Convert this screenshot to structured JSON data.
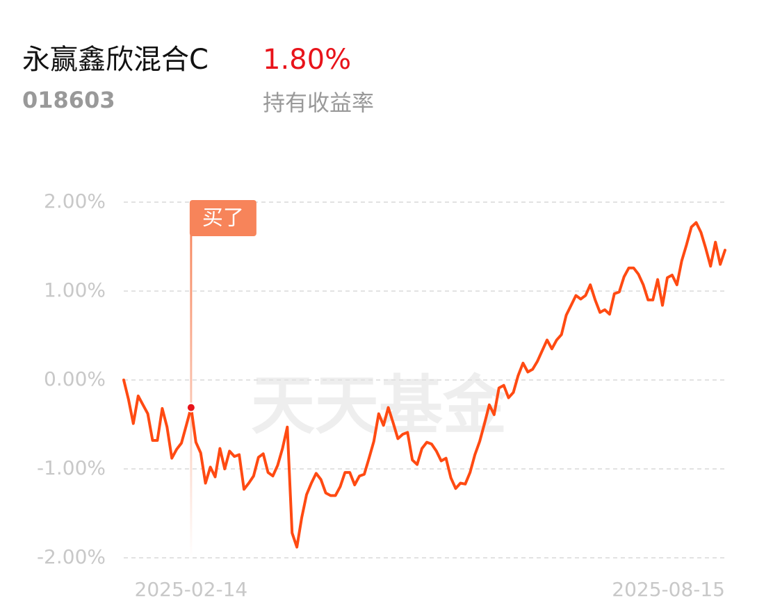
{
  "header": {
    "name": "永赢鑫欣混合C",
    "return": "1.80%",
    "code": "018603",
    "return_label": "持有收益率",
    "watermark": "天天基金"
  },
  "chart_data": {
    "type": "line",
    "color": "#ff4a12",
    "categories": [
      null,
      null,
      null,
      null,
      null,
      null,
      null,
      null,
      null,
      null,
      null,
      null,
      null,
      null,
      "2025-02-14",
      null,
      null,
      null,
      null,
      null,
      null,
      null,
      null,
      null,
      null,
      null,
      null,
      null,
      null,
      null,
      null,
      null,
      null,
      null,
      null,
      null,
      null,
      null,
      null,
      null,
      null,
      null,
      null,
      null,
      null,
      null,
      null,
      null,
      null,
      null,
      null,
      null,
      null,
      null,
      null,
      null,
      null,
      null,
      null,
      null,
      null,
      null,
      null,
      null,
      null,
      null,
      null,
      null,
      null,
      null,
      null,
      null,
      null,
      null,
      null,
      null,
      null,
      null,
      null,
      null,
      null,
      null,
      null,
      null,
      null,
      null,
      null,
      null,
      null,
      null,
      null,
      null,
      null,
      null,
      null,
      null,
      null,
      null,
      null,
      null,
      null,
      null,
      null,
      null,
      null,
      null,
      null,
      null,
      null,
      null,
      null,
      null,
      null,
      null,
      null,
      null,
      null,
      null,
      null,
      null,
      null,
      null,
      null,
      null,
      null,
      "2025-08-15"
    ],
    "values": [
      0,
      -0.22,
      -0.49,
      -0.18,
      -0.28,
      -0.38,
      -0.68,
      -0.68,
      -0.32,
      -0.53,
      -0.88,
      -0.78,
      -0.71,
      -0.51,
      -0.31,
      -0.7,
      -0.82,
      -1.16,
      -0.98,
      -1.09,
      -0.77,
      -1.0,
      -0.8,
      -0.86,
      -0.84,
      -1.23,
      -1.16,
      -1.08,
      -0.87,
      -0.83,
      -1.04,
      -1.08,
      -0.96,
      -0.77,
      -0.53,
      -1.72,
      -1.88,
      -1.55,
      -1.29,
      -1.16,
      -1.05,
      -1.12,
      -1.27,
      -1.3,
      -1.3,
      -1.2,
      -1.04,
      -1.04,
      -1.18,
      -1.08,
      -1.06,
      -0.88,
      -0.69,
      -0.38,
      -0.51,
      -0.31,
      -0.48,
      -0.66,
      -0.61,
      -0.59,
      -0.9,
      -0.95,
      -0.77,
      -0.7,
      -0.72,
      -0.8,
      -0.91,
      -0.88,
      -1.1,
      -1.22,
      -1.16,
      -1.17,
      -1.04,
      -0.84,
      -0.69,
      -0.49,
      -0.28,
      -0.39,
      -0.09,
      -0.06,
      -0.2,
      -0.14,
      0.05,
      0.19,
      0.09,
      0.12,
      0.21,
      0.33,
      0.45,
      0.35,
      0.45,
      0.51,
      0.73,
      0.84,
      0.95,
      0.91,
      0.95,
      1.07,
      0.9,
      0.76,
      0.79,
      0.74,
      0.97,
      0.99,
      1.16,
      1.26,
      1.26,
      1.19,
      1.07,
      0.9,
      0.9,
      1.13,
      0.84,
      1.15,
      1.18,
      1.07,
      1.34,
      1.52,
      1.72,
      1.77,
      1.66,
      1.48,
      1.28,
      1.55,
      1.3,
      1.46
    ],
    "ylim": [
      -2,
      2
    ],
    "yticks": [
      {
        "value": 2,
        "label": "2.00%"
      },
      {
        "value": 1,
        "label": "1.00%"
      },
      {
        "value": 0,
        "label": "0.00%"
      },
      {
        "value": -1,
        "label": "-1.00%"
      },
      {
        "value": -2,
        "label": "-2.00%"
      }
    ],
    "grid": true,
    "annotations": [
      {
        "text": "买了",
        "x": "2025-02-14"
      }
    ]
  }
}
